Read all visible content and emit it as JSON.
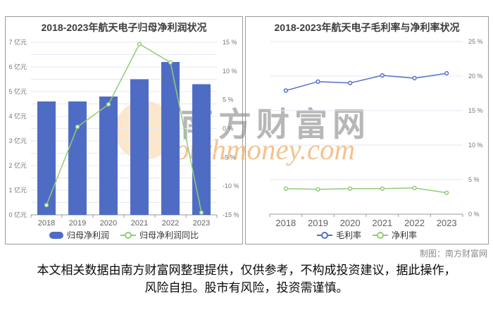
{
  "page": {
    "disclaimer": "本文相关数据由南方财富网整理提供，仅供参考，不构成投资建议，据此操作，风险自担。股市有风险，投资需谨慎。",
    "credit": "制图：南方财富网"
  },
  "watermark": {
    "cn_text": "南方财富网",
    "en_text": "southmoney.com",
    "circle_color": "#fbd7a6",
    "cn_color": "#7d7d7d",
    "en_color": "#f3b87e"
  },
  "colors": {
    "grid": "#e3e8f3",
    "axis_line": "#999999",
    "axis_text": "#73767a",
    "x_label_text": "#5e6266",
    "card_border": "#9a9a9a"
  },
  "chart_data": [
    {
      "type": "bar+line",
      "title": "2018-2023年航天电子归母净利润状况",
      "categories": [
        "2018",
        "2019",
        "2020",
        "2021",
        "2022",
        "2023"
      ],
      "series": [
        {
          "name": "归母净利润",
          "type": "bar",
          "axis": "left",
          "unit": "亿元",
          "color": "#4f6cc4",
          "values": [
            4.6,
            4.6,
            4.8,
            5.5,
            6.2,
            5.3
          ]
        },
        {
          "name": "归母净利润同比",
          "type": "line",
          "axis": "right",
          "unit": "%",
          "color": "#91cc75",
          "values": [
            -13.3,
            0.3,
            4.2,
            14.7,
            11.5,
            -14.6
          ]
        }
      ],
      "left_axis": {
        "min": 0,
        "max": 7,
        "label_step": 1,
        "grid_step": 0.5,
        "unit": "亿元"
      },
      "right_axis": {
        "min": -15,
        "max": 15,
        "label_step": 5,
        "unit": "%"
      },
      "legend_position": "bottom",
      "grid": true
    },
    {
      "type": "line",
      "title": "2018-2023年航天电子毛利率与净利率状况",
      "categories": [
        "2018",
        "2019",
        "2020",
        "2021",
        "2022",
        "2023"
      ],
      "series": [
        {
          "name": "毛利率",
          "type": "line",
          "axis": "right",
          "unit": "%",
          "color": "#5470c6",
          "values": [
            17.9,
            19.2,
            19.0,
            20.1,
            19.7,
            20.4
          ]
        },
        {
          "name": "净利率",
          "type": "line",
          "axis": "right",
          "unit": "%",
          "color": "#91cc75",
          "values": [
            3.7,
            3.6,
            3.7,
            3.7,
            3.8,
            3.1
          ]
        }
      ],
      "right_axis": {
        "min": 0,
        "max": 25,
        "label_step": 5,
        "grid_step": 5,
        "unit": "%"
      },
      "legend_position": "bottom",
      "grid": true
    }
  ]
}
